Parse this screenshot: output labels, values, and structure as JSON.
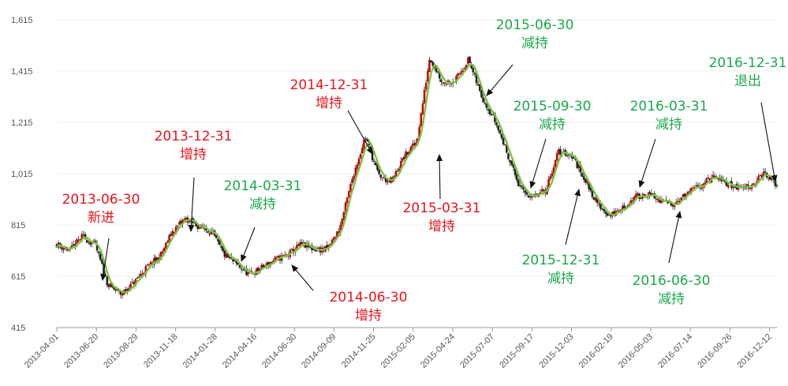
{
  "chart_data": {
    "type": "candlestick",
    "title": "",
    "xlabel": "",
    "ylabel": "",
    "ylim": [
      415,
      1615
    ],
    "y_ticks": [
      "415",
      "615",
      "815",
      "1,015",
      "1,215",
      "1,415",
      "1,615"
    ],
    "x_ticks": [
      "2013-04-01",
      "2013-06-20",
      "2013-08-29",
      "2013-11-18",
      "2014-01-28",
      "2014-04-16",
      "2014-06-30",
      "2014-09-09",
      "2014-11-25",
      "2015-02-05",
      "2015-04-24",
      "2015-07-07",
      "2015-09-17",
      "2015-12-03",
      "2016-02-19",
      "2016-05-03",
      "2016-07-14",
      "2016-09-26",
      "2016-12-12"
    ],
    "colors": {
      "up": "#cc0000",
      "down": "#222222",
      "ma_line": "#7dc242",
      "ann_buy": "#e8141c",
      "ann_sell": "#1ba84a",
      "axis": "#999999"
    },
    "close_points": [
      [
        0,
        740
      ],
      [
        1,
        715
      ],
      [
        2,
        770
      ],
      [
        3,
        735
      ],
      [
        4,
        580
      ],
      [
        5,
        545
      ],
      [
        6,
        590
      ],
      [
        7,
        650
      ],
      [
        8,
        690
      ],
      [
        9,
        790
      ],
      [
        10,
        840
      ],
      [
        11,
        810
      ],
      [
        12,
        790
      ],
      [
        13,
        700
      ],
      [
        14,
        660
      ],
      [
        15,
        620
      ],
      [
        16,
        650
      ],
      [
        17,
        680
      ],
      [
        18,
        700
      ],
      [
        19,
        740
      ],
      [
        20,
        720
      ],
      [
        21,
        720
      ],
      [
        22,
        800
      ],
      [
        23,
        1000
      ],
      [
        24,
        1160
      ],
      [
        25,
        1010
      ],
      [
        26,
        980
      ],
      [
        27,
        1080
      ],
      [
        28,
        1140
      ],
      [
        29,
        1470
      ],
      [
        30,
        1370
      ],
      [
        31,
        1380
      ],
      [
        32,
        1460
      ],
      [
        33,
        1320
      ],
      [
        34,
        1230
      ],
      [
        35,
        1100
      ],
      [
        36,
        960
      ],
      [
        37,
        920
      ],
      [
        38,
        950
      ],
      [
        39,
        1100
      ],
      [
        40,
        1090
      ],
      [
        41,
        1000
      ],
      [
        42,
        900
      ],
      [
        43,
        850
      ],
      [
        44,
        880
      ],
      [
        45,
        925
      ],
      [
        46,
        935
      ],
      [
        47,
        905
      ],
      [
        48,
        900
      ],
      [
        49,
        935
      ],
      [
        50,
        970
      ],
      [
        51,
        1000
      ],
      [
        52,
        980
      ],
      [
        53,
        960
      ],
      [
        54,
        970
      ],
      [
        55,
        1015
      ],
      [
        56,
        970
      ]
    ],
    "annotations": [
      {
        "date": "2013-06-30",
        "action": "新进",
        "kind": "buy"
      },
      {
        "date": "2013-12-31",
        "action": "增持",
        "kind": "buy"
      },
      {
        "date": "2014-03-31",
        "action": "减持",
        "kind": "sell"
      },
      {
        "date": "2014-06-30",
        "action": "增持",
        "kind": "buy"
      },
      {
        "date": "2014-12-31",
        "action": "增持",
        "kind": "buy"
      },
      {
        "date": "2015-03-31",
        "action": "增持",
        "kind": "buy"
      },
      {
        "date": "2015-06-30",
        "action": "减持",
        "kind": "sell"
      },
      {
        "date": "2015-09-30",
        "action": "减持",
        "kind": "sell"
      },
      {
        "date": "2015-12-31",
        "action": "减持",
        "kind": "sell"
      },
      {
        "date": "2016-03-31",
        "action": "减持",
        "kind": "sell"
      },
      {
        "date": "2016-06-30",
        "action": "减持",
        "kind": "sell"
      },
      {
        "date": "2016-12-31",
        "action": "退出",
        "kind": "sell"
      }
    ]
  }
}
